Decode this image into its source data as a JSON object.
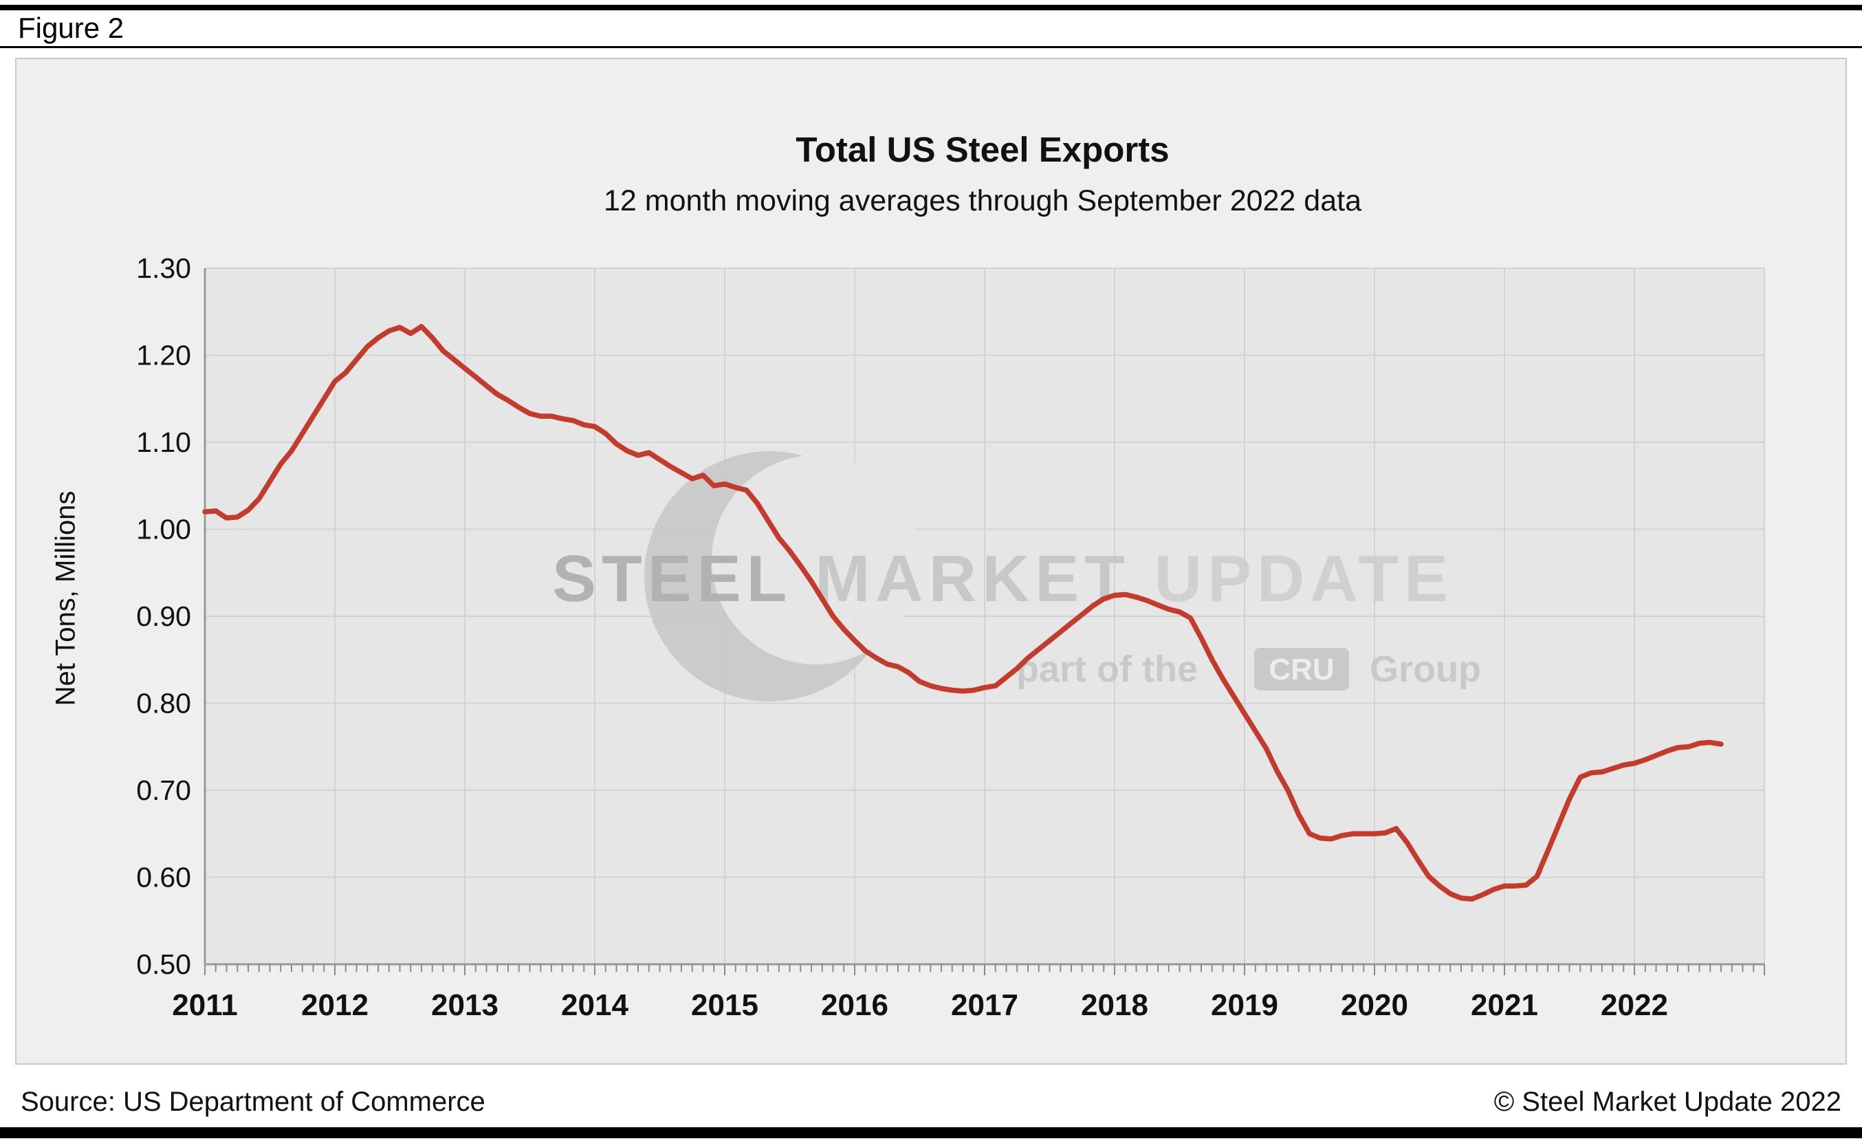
{
  "figure_label": "Figure 2",
  "footer": {
    "source": "Source: US Department of Commerce",
    "copyright": "© Steel Market Update 2022"
  },
  "watermark": {
    "brand_bold": "STEEL",
    "brand_mid": " MARKET",
    "brand_light": " UPDATE",
    "tagline_prefix": "part of the",
    "cru": "CRU",
    "tagline_suffix": "Group"
  },
  "colors": {
    "line": "#c23b2b",
    "plot_bg": "#e6e6e6",
    "card_bg": "#efefef",
    "grid": "#d2d2d2",
    "axis": "#9a9a9a",
    "tick": "#8a8a8a"
  },
  "chart_data": {
    "type": "line",
    "title": "Total US Steel Exports",
    "subtitle": "12 month moving averages through September 2022 data",
    "ylabel": "Net Tons, Millions",
    "xlabel": "",
    "ylim": [
      0.5,
      1.3
    ],
    "ytick_step": 0.1,
    "ytick_labels": [
      "0.50",
      "0.60",
      "0.70",
      "0.80",
      "0.90",
      "1.00",
      "1.10",
      "1.20",
      "1.30"
    ],
    "x_labels": [
      "2011",
      "2012",
      "2013",
      "2014",
      "2015",
      "2016",
      "2017",
      "2018",
      "2019",
      "2020",
      "2021",
      "2022"
    ],
    "x_domain_months": 144,
    "x_start_label": "January 2011",
    "x_end_label": "September 2022",
    "grid": true,
    "legend": "none",
    "series": [
      {
        "name": "Total US Steel Exports (12-month moving average)",
        "color": "#c23b2b",
        "monthly_values": [
          1.02,
          1.021,
          1.013,
          1.014,
          1.022,
          1.035,
          1.055,
          1.075,
          1.09,
          1.11,
          1.13,
          1.15,
          1.17,
          1.18,
          1.195,
          1.21,
          1.22,
          1.228,
          1.232,
          1.225,
          1.233,
          1.22,
          1.205,
          1.195,
          1.185,
          1.175,
          1.165,
          1.155,
          1.148,
          1.14,
          1.133,
          1.13,
          1.13,
          1.127,
          1.125,
          1.12,
          1.118,
          1.11,
          1.098,
          1.09,
          1.085,
          1.088,
          1.08,
          1.072,
          1.065,
          1.058,
          1.062,
          1.05,
          1.052,
          1.048,
          1.045,
          1.03,
          1.01,
          0.99,
          0.975,
          0.958,
          0.94,
          0.92,
          0.9,
          0.885,
          0.872,
          0.86,
          0.852,
          0.845,
          0.842,
          0.835,
          0.825,
          0.82,
          0.817,
          0.815,
          0.814,
          0.815,
          0.818,
          0.82,
          0.83,
          0.84,
          0.852,
          0.862,
          0.872,
          0.882,
          0.892,
          0.902,
          0.912,
          0.92,
          0.924,
          0.925,
          0.922,
          0.918,
          0.913,
          0.908,
          0.905,
          0.898,
          0.875,
          0.85,
          0.828,
          0.808,
          0.788,
          0.768,
          0.748,
          0.722,
          0.7,
          0.672,
          0.65,
          0.645,
          0.644,
          0.648,
          0.65,
          0.65,
          0.65,
          0.651,
          0.656,
          0.64,
          0.62,
          0.601,
          0.59,
          0.581,
          0.576,
          0.575,
          0.58,
          0.586,
          0.59,
          0.59,
          0.591,
          0.601,
          0.63,
          0.66,
          0.69,
          0.715,
          0.72,
          0.721,
          0.725,
          0.729,
          0.731,
          0.735,
          0.74,
          0.745,
          0.749,
          0.75,
          0.754,
          0.755,
          0.753
        ]
      }
    ]
  }
}
